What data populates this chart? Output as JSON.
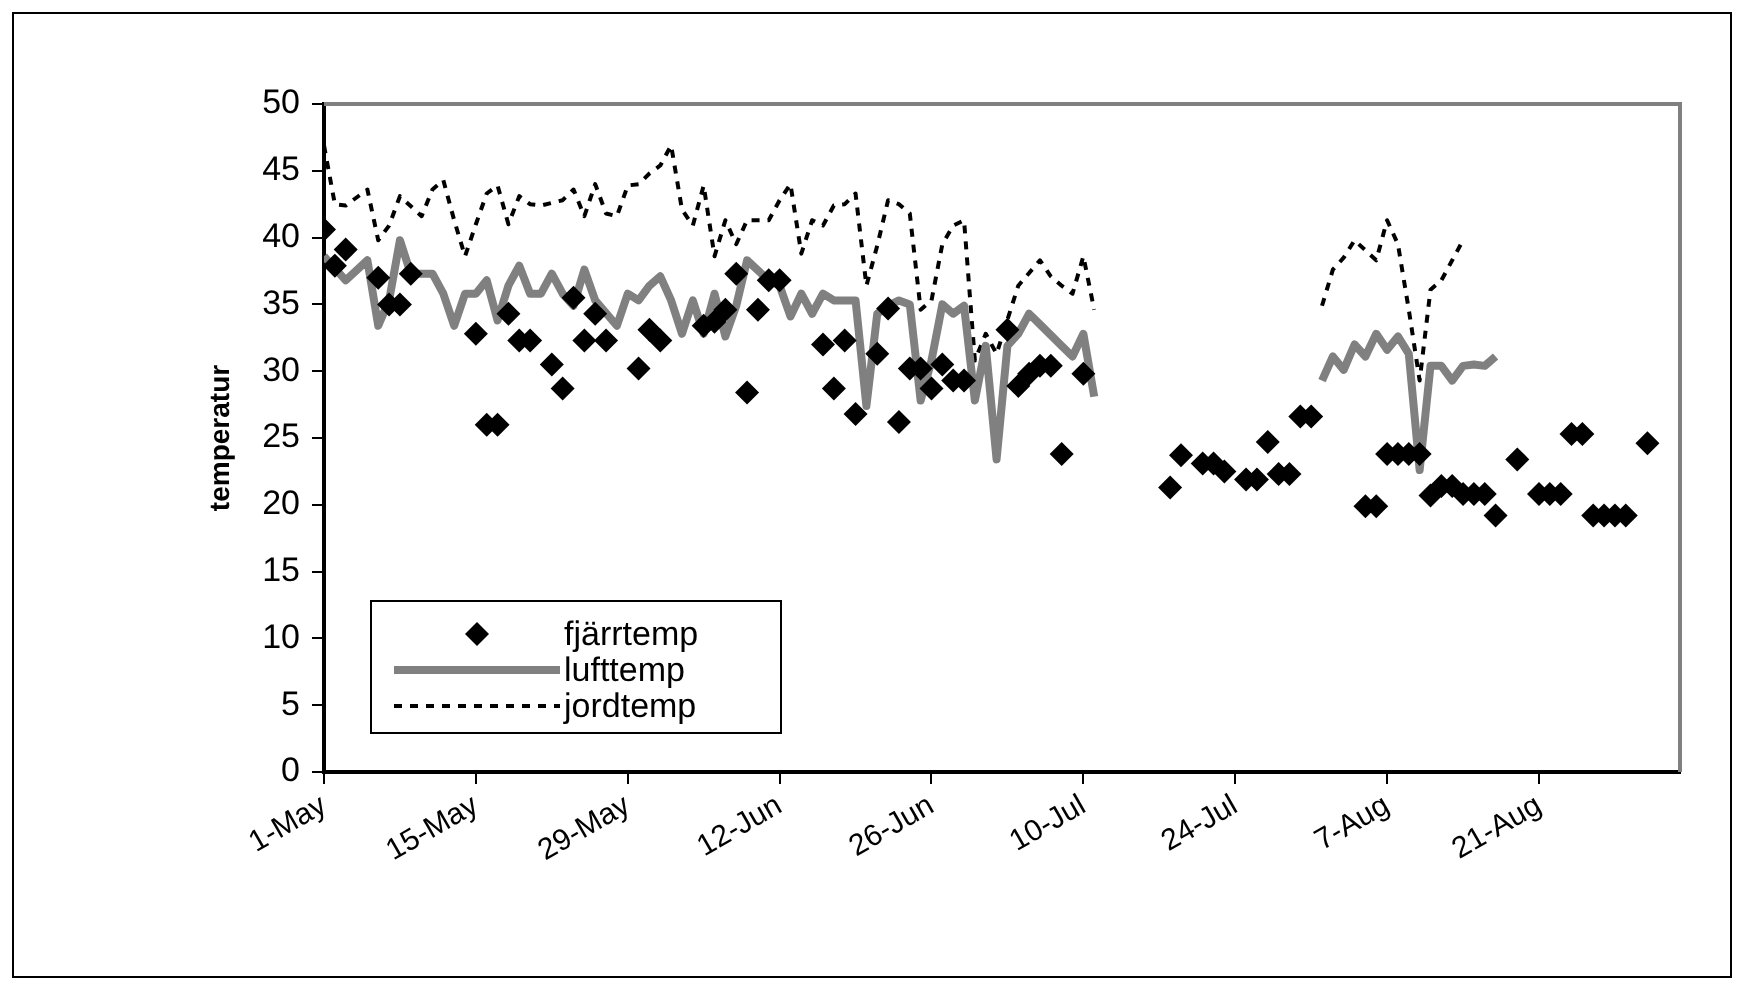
{
  "chart_data": {
    "type": "line",
    "ylabel": "temperatur",
    "legend": "bottom left",
    "grid": false,
    "xlim": [
      "--05-01",
      "--09-03"
    ],
    "xticks": [
      {
        "value": "--05-01",
        "label": "1-May"
      },
      {
        "value": "--05-15",
        "label": "15-May"
      },
      {
        "value": "--05-29",
        "label": "29-May"
      },
      {
        "value": "--06-12",
        "label": "12-Jun"
      },
      {
        "value": "--06-26",
        "label": "26-Jun"
      },
      {
        "value": "--07-10",
        "label": "10-Jul"
      },
      {
        "value": "--07-24",
        "label": "24-Jul"
      },
      {
        "value": "--08-07",
        "label": "7-Aug"
      },
      {
        "value": "--08-21",
        "label": "21-Aug"
      }
    ],
    "ylim": [
      0,
      50
    ],
    "yticks": [
      0,
      5,
      10,
      15,
      20,
      25,
      30,
      35,
      40,
      45,
      50
    ],
    "series": [
      {
        "name": "fjärrtemp",
        "type": "scatter",
        "marker": "diamond",
        "color": "#000000",
        "x": [
          "--05-01",
          "--05-02",
          "--05-03",
          "--05-06",
          "--05-07",
          "--05-08",
          "--05-09",
          "--05-15",
          "--05-16",
          "--05-17",
          "--05-18",
          "--05-19",
          "--05-20",
          "--05-22",
          "--05-23",
          "--05-24",
          "--05-25",
          "--05-26",
          "--05-27",
          "--05-30",
          "--05-31",
          "--06-01",
          "--06-05",
          "--06-06",
          "--06-07",
          "--06-08",
          "--06-09",
          "--06-10",
          "--06-11",
          "--06-12",
          "--06-16",
          "--06-17",
          "--06-18",
          "--06-19",
          "--06-21",
          "--06-22",
          "--06-23",
          "--06-24",
          "--06-25",
          "--06-26",
          "--06-27",
          "--06-28",
          "--06-29",
          "--07-03",
          "--07-04",
          "--07-05",
          "--07-06",
          "--07-07",
          "--07-08",
          "--07-10",
          "--07-18",
          "--07-19",
          "--07-21",
          "--07-22",
          "--07-23",
          "--07-25",
          "--07-26",
          "--07-27",
          "--07-28",
          "--07-29",
          "--07-30",
          "--07-31",
          "--08-05",
          "--08-06",
          "--08-07",
          "--08-08",
          "--08-09",
          "--08-10",
          "--08-11",
          "--08-12",
          "--08-13",
          "--08-14",
          "--08-15",
          "--08-16",
          "--08-17",
          "--08-19",
          "--08-21",
          "--08-22",
          "--08-23",
          "--08-24",
          "--08-25",
          "--08-26",
          "--08-27",
          "--08-28",
          "--08-29",
          "--08-31"
        ],
        "values": [
          40.6,
          37.9,
          39.1,
          37.0,
          35.0,
          35.0,
          37.3,
          32.8,
          26.0,
          26.0,
          34.3,
          32.3,
          32.3,
          30.5,
          28.7,
          35.5,
          32.3,
          34.3,
          32.3,
          30.2,
          33.1,
          32.3,
          33.4,
          33.7,
          34.6,
          37.3,
          28.4,
          34.6,
          36.8,
          36.8,
          32.0,
          28.7,
          32.3,
          26.8,
          31.3,
          34.7,
          26.2,
          30.2,
          30.2,
          28.7,
          30.5,
          29.3,
          29.3,
          33.1,
          28.9,
          29.8,
          30.4,
          30.4,
          23.8,
          29.8,
          21.3,
          23.7,
          23.1,
          23.1,
          22.5,
          21.9,
          21.9,
          24.7,
          22.3,
          22.3,
          26.6,
          26.6,
          19.9,
          19.9,
          23.8,
          23.8,
          23.8,
          23.8,
          20.7,
          21.4,
          21.4,
          20.8,
          20.8,
          20.8,
          19.2,
          23.4,
          20.8,
          20.8,
          20.8,
          25.3,
          25.3,
          19.2,
          19.2,
          19.2,
          19.2,
          24.6
        ]
      },
      {
        "name": "lufttemp",
        "type": "line",
        "marker": "none",
        "line_style": "solid",
        "color": "#808080",
        "x": [
          "--05-01",
          "--05-03",
          "--05-05",
          "--05-06",
          "--05-07",
          "--05-08",
          "--05-09",
          "--05-11",
          "--05-12",
          "--05-13",
          "--05-14",
          "--05-15",
          "--05-16",
          "--05-17",
          "--05-18",
          "--05-19",
          "--05-20",
          "--05-21",
          "--05-22",
          "--05-23",
          "--05-24",
          "--05-25",
          "--05-26",
          "--05-28",
          "--05-29",
          "--05-30",
          "--05-31",
          "--06-01",
          "--06-02",
          "--06-03",
          "--06-04",
          "--06-05",
          "--06-06",
          "--06-07",
          "--06-08",
          "--06-09",
          "--06-11",
          "--06-12",
          "--06-13",
          "--06-14",
          "--06-15",
          "--06-16",
          "--06-17",
          "--06-19",
          "--06-20",
          "--06-21",
          "--06-22",
          "--06-23",
          "--06-24",
          "--06-25",
          "--06-26",
          "--06-27",
          "--06-28",
          "--06-29",
          "--06-30",
          "--07-01",
          "--07-02",
          "--07-03",
          "--07-04",
          "--07-05",
          "--07-06",
          "--07-08",
          "--07-09",
          "--07-10",
          "--07-11",
          "--07-20",
          "--08-01",
          "--08-02",
          "--08-03",
          "--08-04",
          "--08-05",
          "--08-06",
          "--08-07",
          "--08-08",
          "--08-09",
          "--08-10",
          "--08-11",
          "--08-12",
          "--08-13",
          "--08-14",
          "--08-15",
          "--08-16",
          "--08-17"
        ],
        "values": [
          38.6,
          36.8,
          38.3,
          33.4,
          35.3,
          39.8,
          37.3,
          37.3,
          35.8,
          33.4,
          35.8,
          35.8,
          36.8,
          33.8,
          36.4,
          37.9,
          35.8,
          35.8,
          37.3,
          35.8,
          34.9,
          37.6,
          35.3,
          33.4,
          35.8,
          35.3,
          36.4,
          37.1,
          35.3,
          32.8,
          35.3,
          32.8,
          35.8,
          32.6,
          34.9,
          38.3,
          36.8,
          36.4,
          34.1,
          35.8,
          34.3,
          35.8,
          35.3,
          35.3,
          27.4,
          34.3,
          34.9,
          35.3,
          35.0,
          27.8,
          30.8,
          35.0,
          34.3,
          34.9,
          27.8,
          31.9,
          23.4,
          31.9,
          32.8,
          34.3,
          33.5,
          31.9,
          31.1,
          32.8,
          28.1,
          null,
          29.3,
          31.1,
          30.1,
          32.0,
          31.1,
          32.8,
          31.6,
          32.6,
          31.3,
          22.6,
          30.4,
          30.4,
          29.3,
          30.4,
          30.5,
          30.4,
          31.1
        ]
      },
      {
        "name": "jordtemp",
        "type": "line",
        "marker": "none",
        "line_style": "dashed",
        "color": "#000000",
        "x": [
          "--05-01",
          "--05-02",
          "--05-03",
          "--05-05",
          "--05-06",
          "--05-07",
          "--05-08",
          "--05-10",
          "--05-11",
          "--05-12",
          "--05-13",
          "--05-14",
          "--05-15",
          "--05-16",
          "--05-17",
          "--05-18",
          "--05-19",
          "--05-20",
          "--05-21",
          "--05-23",
          "--05-24",
          "--05-25",
          "--05-26",
          "--05-27",
          "--05-28",
          "--05-29",
          "--05-30",
          "--05-31",
          "--06-01",
          "--06-02",
          "--06-03",
          "--06-04",
          "--06-05",
          "--06-06",
          "--06-07",
          "--06-08",
          "--06-09",
          "--06-11",
          "--06-12",
          "--06-13",
          "--06-14",
          "--06-15",
          "--06-16",
          "--06-17",
          "--06-18",
          "--06-19",
          "--06-20",
          "--06-21",
          "--06-22",
          "--06-23",
          "--06-24",
          "--06-25",
          "--06-26",
          "--06-27",
          "--06-28",
          "--06-29",
          "--06-30",
          "--07-01",
          "--07-02",
          "--07-04",
          "--07-06",
          "--07-07",
          "--07-08",
          "--07-09",
          "--07-10",
          "--07-11",
          "--07-20",
          "--08-01",
          "--08-02",
          "--08-03",
          "--08-04",
          "--08-06",
          "--08-07",
          "--08-08",
          "--08-09",
          "--08-10",
          "--08-11",
          "--08-12",
          "--08-13",
          "--08-14"
        ],
        "values": [
          46.9,
          42.5,
          42.4,
          43.6,
          39.8,
          40.9,
          43.1,
          41.6,
          43.6,
          44.3,
          41.3,
          38.6,
          41.0,
          43.3,
          43.9,
          41.0,
          43.1,
          42.5,
          42.4,
          42.8,
          43.6,
          41.6,
          44.0,
          41.8,
          41.6,
          43.9,
          44.0,
          44.8,
          45.4,
          46.9,
          42.1,
          40.9,
          43.9,
          38.6,
          41.3,
          39.5,
          41.3,
          41.3,
          42.8,
          44.0,
          38.8,
          41.3,
          40.9,
          42.4,
          42.5,
          43.3,
          36.4,
          39.4,
          42.8,
          42.5,
          41.8,
          34.6,
          35.3,
          39.5,
          40.9,
          41.3,
          30.8,
          32.8,
          31.3,
          36.4,
          38.3,
          37.1,
          36.4,
          35.8,
          38.6,
          34.6,
          null,
          34.9,
          37.6,
          38.5,
          39.8,
          38.3,
          41.3,
          39.5,
          34.6,
          29.3,
          36.1,
          36.8,
          38.3,
          39.8
        ]
      }
    ]
  }
}
